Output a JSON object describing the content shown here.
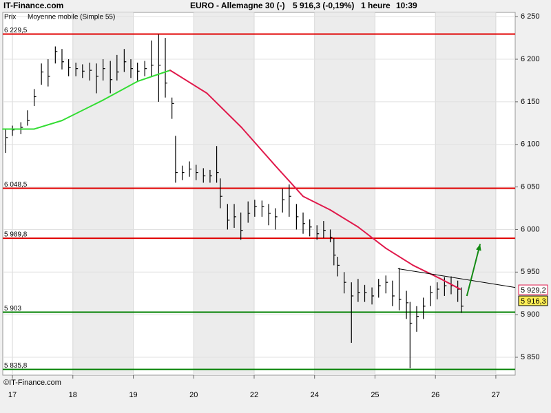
{
  "chart_data": {
    "type": "ohlc",
    "site": "IT-Finance.com",
    "title": "EURO - Allemagne 30 (-)",
    "quote": "5 916,3 (-0,19%)",
    "period": "1 heure",
    "time": "10:39",
    "copyright": "©IT-Finance.com",
    "price_name": "Prix",
    "color": "#000000",
    "x": [
      -0.11,
      0,
      0.14,
      0.25,
      0.36,
      0.48,
      0.59,
      0.71,
      0.82,
      0.93,
      1.05,
      1.16,
      1.28,
      1.39,
      1.5,
      1.62,
      1.73,
      1.85,
      1.96,
      2.07,
      2.19,
      2.3,
      2.42,
      2.53,
      2.64,
      2.7,
      2.81,
      2.93,
      3.04,
      3.16,
      3.27,
      3.38,
      3.44,
      3.56,
      3.67,
      3.78,
      3.9,
      4.01,
      4.13,
      4.24,
      4.35,
      4.47,
      4.58,
      4.7,
      4.81,
      4.92,
      5.04,
      5.15,
      5.26,
      5.32,
      5.38,
      5.49,
      5.61,
      5.72,
      5.83,
      5.95,
      6.06,
      6.18,
      6.29,
      6.4,
      6.52,
      6.58,
      6.69,
      6.8,
      6.92,
      7.03,
      7.15,
      7.26,
      7.37,
      7.43
    ],
    "high": [
      6118,
      6122,
      6126,
      6140,
      6165,
      6195,
      6200,
      6215,
      6212,
      6200,
      6196,
      6194,
      6196,
      6195,
      6200,
      6198,
      6205,
      6212,
      6200,
      6196,
      6198,
      6222,
      6229,
      6225,
      6155,
      6110,
      6075,
      6080,
      6076,
      6072,
      6070,
      6098,
      6060,
      6030,
      6030,
      6020,
      6033,
      6035,
      6034,
      6030,
      6025,
      6048,
      6053,
      6030,
      6020,
      6012,
      6005,
      6010,
      6000,
      5990,
      5968,
      5950,
      5938,
      5942,
      5935,
      5932,
      5942,
      5946,
      5940,
      5955,
      5928,
      5915,
      5910,
      5920,
      5934,
      5938,
      5944,
      5945,
      5940,
      5932
    ],
    "low": [
      6090,
      6110,
      6112,
      6122,
      6145,
      6170,
      6168,
      6195,
      6188,
      6180,
      6180,
      6178,
      6175,
      6160,
      6175,
      6160,
      6175,
      6185,
      6178,
      6175,
      6180,
      6180,
      6150,
      6155,
      6130,
      6055,
      6058,
      6062,
      6058,
      6055,
      6055,
      6055,
      6025,
      6000,
      6002,
      5988,
      6008,
      6015,
      6015,
      6005,
      6000,
      6020,
      6015,
      6000,
      5995,
      5992,
      5988,
      5990,
      5985,
      5958,
      5945,
      5925,
      5867,
      5915,
      5915,
      5912,
      5920,
      5925,
      5910,
      5905,
      5895,
      5837,
      5880,
      5895,
      5910,
      5918,
      5922,
      5924,
      5915,
      5902
    ],
    "close": [
      6108,
      6117,
      6120,
      6128,
      6156,
      6185,
      6180,
      6209,
      6197,
      6190,
      6189,
      6186,
      6187,
      6180,
      6189,
      6176,
      6185,
      6197,
      6189,
      6186,
      6189,
      6193,
      6193,
      6172,
      6148,
      6067,
      6067,
      6071,
      6067,
      6063,
      6063,
      6067,
      6039,
      6011,
      6015,
      5999,
      6019,
      6027,
      6027,
      6019,
      6015,
      6035,
      6039,
      6015,
      6007,
      6003,
      5995,
      5999,
      5991,
      5970,
      5958,
      5938,
      5922,
      5926,
      5926,
      5922,
      5934,
      5938,
      5922,
      5918,
      5914,
      5890,
      5898,
      5910,
      5926,
      5930,
      5934,
      5934,
      5930,
      5910
    ],
    "ma": {
      "name": "Moyenne mobile (Simple 55)",
      "color": "#e0194b",
      "rise_color": "#33dd33",
      "x": [
        -0.16,
        0.36,
        0.82,
        1.5,
        2.07,
        2.61,
        3.22,
        3.79,
        4.35,
        4.81,
        5.26,
        5.72,
        6.18,
        6.63,
        7.09,
        7.41
      ],
      "values": [
        6118,
        6118,
        6128,
        6152,
        6174,
        6187,
        6160,
        6120,
        6075,
        6039,
        6023,
        6003,
        5978,
        5958,
        5942,
        5930
      ]
    },
    "levels": [
      {
        "value": 6229.5,
        "label": "6 229,5",
        "color": "#e00000"
      },
      {
        "value": 6048.5,
        "label": "6 048,5",
        "color": "#e00000"
      },
      {
        "value": 5989.8,
        "label": "5 989,8",
        "color": "#e00000"
      },
      {
        "value": 5903,
        "label": "5 903",
        "color": "#008000"
      },
      {
        "value": 5835.8,
        "label": "5 835,8",
        "color": "#008000"
      }
    ],
    "trendline": {
      "x": [
        6.38,
        8.32
      ],
      "values": [
        5954,
        5932
      ],
      "color": "#000000"
    },
    "arrow": {
      "x": [
        7.52,
        7.74
      ],
      "values": [
        5922,
        5983
      ],
      "color": "#138a13"
    },
    "tags": [
      {
        "value": 5929.2,
        "label": "5 929,2",
        "color": "#e0194b",
        "fill": "#ffffff"
      },
      {
        "value": 5916.3,
        "label": "5 916,3",
        "color": "#000000",
        "fill": "#ffee55"
      }
    ],
    "xlim": [
      -0.16,
      8.32
    ],
    "xticks": [
      {
        "value": 0,
        "label": "17"
      },
      {
        "value": 1,
        "label": "18"
      },
      {
        "value": 2,
        "label": "19"
      },
      {
        "value": 3,
        "label": "20"
      },
      {
        "value": 4,
        "label": "22"
      },
      {
        "value": 5,
        "label": "24"
      },
      {
        "value": 6,
        "label": "25"
      },
      {
        "value": 7,
        "label": "26"
      },
      {
        "value": 8,
        "label": "27"
      }
    ],
    "ylim": [
      5829,
      6255
    ],
    "yticks": [
      {
        "value": 5850,
        "label": "5 850"
      },
      {
        "value": 5900,
        "label": "5 900"
      },
      {
        "value": 5950,
        "label": "5 950"
      },
      {
        "value": 6000,
        "label": "6 000"
      },
      {
        "value": 6050,
        "label": "6 050"
      },
      {
        "value": 6100,
        "label": "6 100"
      },
      {
        "value": 6150,
        "label": "6 150"
      },
      {
        "value": 6200,
        "label": "6 200"
      },
      {
        "value": 6250,
        "label": "6 250"
      }
    ],
    "grid": true,
    "alternate_bands": true
  }
}
